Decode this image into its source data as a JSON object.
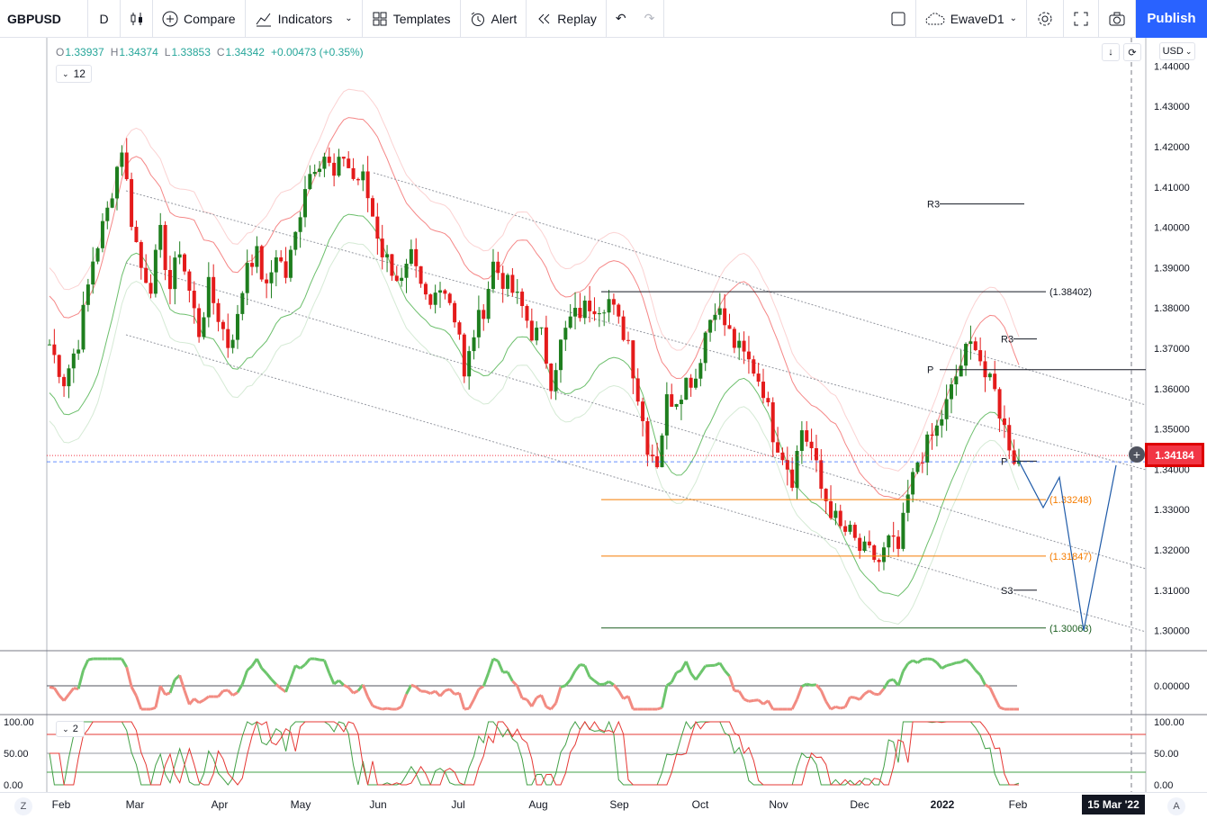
{
  "toolbar": {
    "symbol": "GBPUSD",
    "interval": "D",
    "compare": "Compare",
    "indicators": "Indicators",
    "templates": "Templates",
    "alert": "Alert",
    "replay": "Replay",
    "layout_name": "EwaveD1",
    "publish": "Publish"
  },
  "legend": {
    "open_key": "O",
    "open": "1.33937",
    "high_key": "H",
    "high": "1.34374",
    "low_key": "L",
    "low": "1.33853",
    "close_key": "C",
    "close": "1.34342",
    "change": "+0.00473 (+0.35%)",
    "collapsed_count": "12",
    "indicator_count": "2"
  },
  "axis": {
    "currency": "USD",
    "current_price": "1.34184",
    "crosshair_date": "15 Mar '22",
    "z_label": "Z",
    "a_label": "A"
  },
  "colors": {
    "up": "#26a69a",
    "candle_up": "#1e7e1e",
    "candle_down": "#e41b1b",
    "accent": "#2962ff",
    "price_tag": "#f23645"
  },
  "chart_data": {
    "type": "candlestick",
    "symbol": "GBPUSD",
    "timeframe": "D",
    "ylim": [
      1.295,
      1.447
    ],
    "y_ticks": [
      "1.44000",
      "1.43000",
      "1.42000",
      "1.41000",
      "1.40000",
      "1.39000",
      "1.38000",
      "1.37000",
      "1.36000",
      "1.35000",
      "1.34000",
      "1.33000",
      "1.32000",
      "1.31000",
      "1.30000"
    ],
    "x_ticks": [
      "Feb",
      "Mar",
      "Apr",
      "May",
      "Jun",
      "Jul",
      "Aug",
      "Sep",
      "Oct",
      "Nov",
      "Dec",
      "2022",
      "Feb"
    ],
    "price_path": [
      [
        0,
        1.371
      ],
      [
        3,
        1.362
      ],
      [
        6,
        1.372
      ],
      [
        9,
        1.392
      ],
      [
        12,
        1.404
      ],
      [
        14,
        1.415
      ],
      [
        15,
        1.42
      ],
      [
        17,
        1.402
      ],
      [
        19,
        1.39
      ],
      [
        21,
        1.386
      ],
      [
        23,
        1.398
      ],
      [
        25,
        1.385
      ],
      [
        27,
        1.395
      ],
      [
        29,
        1.384
      ],
      [
        31,
        1.374
      ],
      [
        33,
        1.385
      ],
      [
        35,
        1.378
      ],
      [
        37,
        1.371
      ],
      [
        39,
        1.377
      ],
      [
        41,
        1.392
      ],
      [
        43,
        1.393
      ],
      [
        45,
        1.384
      ],
      [
        47,
        1.394
      ],
      [
        49,
        1.388
      ],
      [
        51,
        1.398
      ],
      [
        53,
        1.411
      ],
      [
        55,
        1.416
      ],
      [
        57,
        1.418
      ],
      [
        59,
        1.412
      ],
      [
        61,
        1.418
      ],
      [
        63,
        1.412
      ],
      [
        65,
        1.412
      ],
      [
        67,
        1.403
      ],
      [
        69,
        1.394
      ],
      [
        71,
        1.39
      ],
      [
        73,
        1.386
      ],
      [
        75,
        1.392
      ],
      [
        77,
        1.384
      ],
      [
        79,
        1.38
      ],
      [
        81,
        1.387
      ],
      [
        83,
        1.382
      ],
      [
        85,
        1.374
      ],
      [
        86,
        1.362
      ],
      [
        88,
        1.374
      ],
      [
        90,
        1.38
      ],
      [
        92,
        1.391
      ],
      [
        94,
        1.387
      ],
      [
        96,
        1.384
      ],
      [
        98,
        1.38
      ],
      [
        100,
        1.374
      ],
      [
        102,
        1.373
      ],
      [
        104,
        1.362
      ],
      [
        106,
        1.371
      ],
      [
        108,
        1.377
      ],
      [
        110,
        1.379
      ],
      [
        112,
        1.381
      ],
      [
        114,
        1.381
      ],
      [
        116,
        1.382
      ],
      [
        118,
        1.376
      ],
      [
        120,
        1.372
      ],
      [
        122,
        1.358
      ],
      [
        124,
        1.346
      ],
      [
        126,
        1.342
      ],
      [
        128,
        1.357
      ],
      [
        130,
        1.358
      ],
      [
        132,
        1.362
      ],
      [
        134,
        1.363
      ],
      [
        136,
        1.374
      ],
      [
        138,
        1.381
      ],
      [
        140,
        1.376
      ],
      [
        142,
        1.371
      ],
      [
        144,
        1.368
      ],
      [
        146,
        1.365
      ],
      [
        148,
        1.36
      ],
      [
        150,
        1.349
      ],
      [
        152,
        1.344
      ],
      [
        154,
        1.338
      ],
      [
        156,
        1.35
      ],
      [
        158,
        1.345
      ],
      [
        160,
        1.335
      ],
      [
        162,
        1.33
      ],
      [
        164,
        1.325
      ],
      [
        166,
        1.324
      ],
      [
        168,
        1.32
      ],
      [
        170,
        1.319
      ],
      [
        172,
        1.317
      ],
      [
        174,
        1.322
      ],
      [
        176,
        1.32
      ],
      [
        178,
        1.333
      ],
      [
        180,
        1.342
      ],
      [
        182,
        1.346
      ],
      [
        184,
        1.35
      ],
      [
        186,
        1.356
      ],
      [
        188,
        1.363
      ],
      [
        190,
        1.369
      ],
      [
        192,
        1.372
      ],
      [
        194,
        1.363
      ],
      [
        196,
        1.359
      ],
      [
        198,
        1.35
      ],
      [
        200,
        1.343
      ],
      [
        201,
        1.342
      ]
    ],
    "levels": [
      {
        "label": "1.38402",
        "price": 1.38402,
        "color": "#131722"
      },
      {
        "label": "1.33248",
        "price": 1.33248,
        "color": "#f57c00"
      },
      {
        "label": "1.31847",
        "price": 1.31847,
        "color": "#f57c00"
      },
      {
        "label": "1.30063",
        "price": 1.30063,
        "color": "#1b5e20"
      }
    ],
    "pivots": [
      {
        "label": "R3",
        "price": 1.4058
      },
      {
        "label": "R3",
        "price": 1.3723
      },
      {
        "label": "P",
        "price": 1.3647
      },
      {
        "label": "P",
        "price": 1.342
      },
      {
        "label": "S3",
        "price": 1.31
      }
    ],
    "projection": [
      [
        1.342,
        0
      ],
      [
        1.3305,
        6
      ],
      [
        1.338,
        10
      ],
      [
        1.3,
        16
      ],
      [
        1.341,
        24
      ]
    ],
    "osc_tick": "0.00000",
    "stoch_ticks": [
      "100.00",
      "50.00",
      "0.00"
    ]
  }
}
